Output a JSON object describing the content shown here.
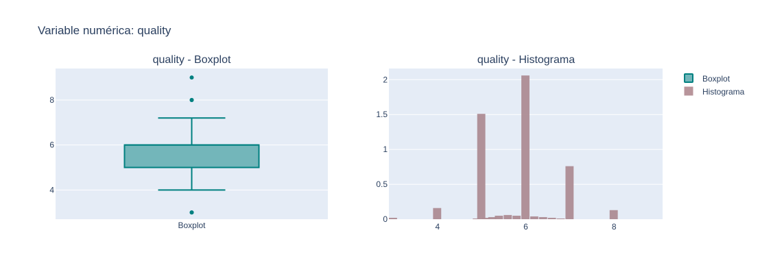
{
  "title": "Variable numérica: quality",
  "chart_data": [
    {
      "type": "box",
      "title": "quality - Boxplot",
      "category": "Boxplot",
      "stats": {
        "lower_fence": 4,
        "q1": 5,
        "median": 6,
        "q3": 6,
        "upper_fence": 7.2
      },
      "outliers": [
        3,
        3,
        8,
        8,
        9
      ],
      "y_ticks": [
        4,
        6,
        8
      ],
      "ylim": [
        2.7,
        9.4
      ],
      "grid": true,
      "colors": {
        "line": "#008080",
        "fill": "#73b6ba"
      }
    },
    {
      "type": "bar",
      "title": "quality - Histograma",
      "x": [
        3,
        4,
        4.9,
        5,
        5.1,
        5.25,
        5.4,
        5.6,
        5.8,
        6,
        6.2,
        6.4,
        6.6,
        6.8,
        7,
        8
      ],
      "values": [
        0.02,
        0.16,
        0.01,
        1.51,
        0.02,
        0.03,
        0.05,
        0.06,
        0.05,
        2.06,
        0.04,
        0.03,
        0.02,
        0.01,
        0.76,
        0.13
      ],
      "x_ticks": [
        4,
        6,
        8
      ],
      "y_ticks": [
        0,
        0.5,
        1,
        1.5,
        2
      ],
      "y_tick_labels": [
        "0",
        "0.5",
        "1",
        "1.5",
        "2"
      ],
      "xlim": [
        2.9,
        9.1
      ],
      "ylim": [
        0,
        2.16
      ],
      "grid": true,
      "colors": {
        "bar": "#ad8c93"
      }
    }
  ],
  "legend": {
    "placement": "top-right",
    "items": [
      {
        "label": "Boxplot",
        "color": "#73b6ba",
        "border": "#008080"
      },
      {
        "label": "Histograma",
        "color": "#b8959b",
        "border": "#b8959b"
      }
    ]
  }
}
